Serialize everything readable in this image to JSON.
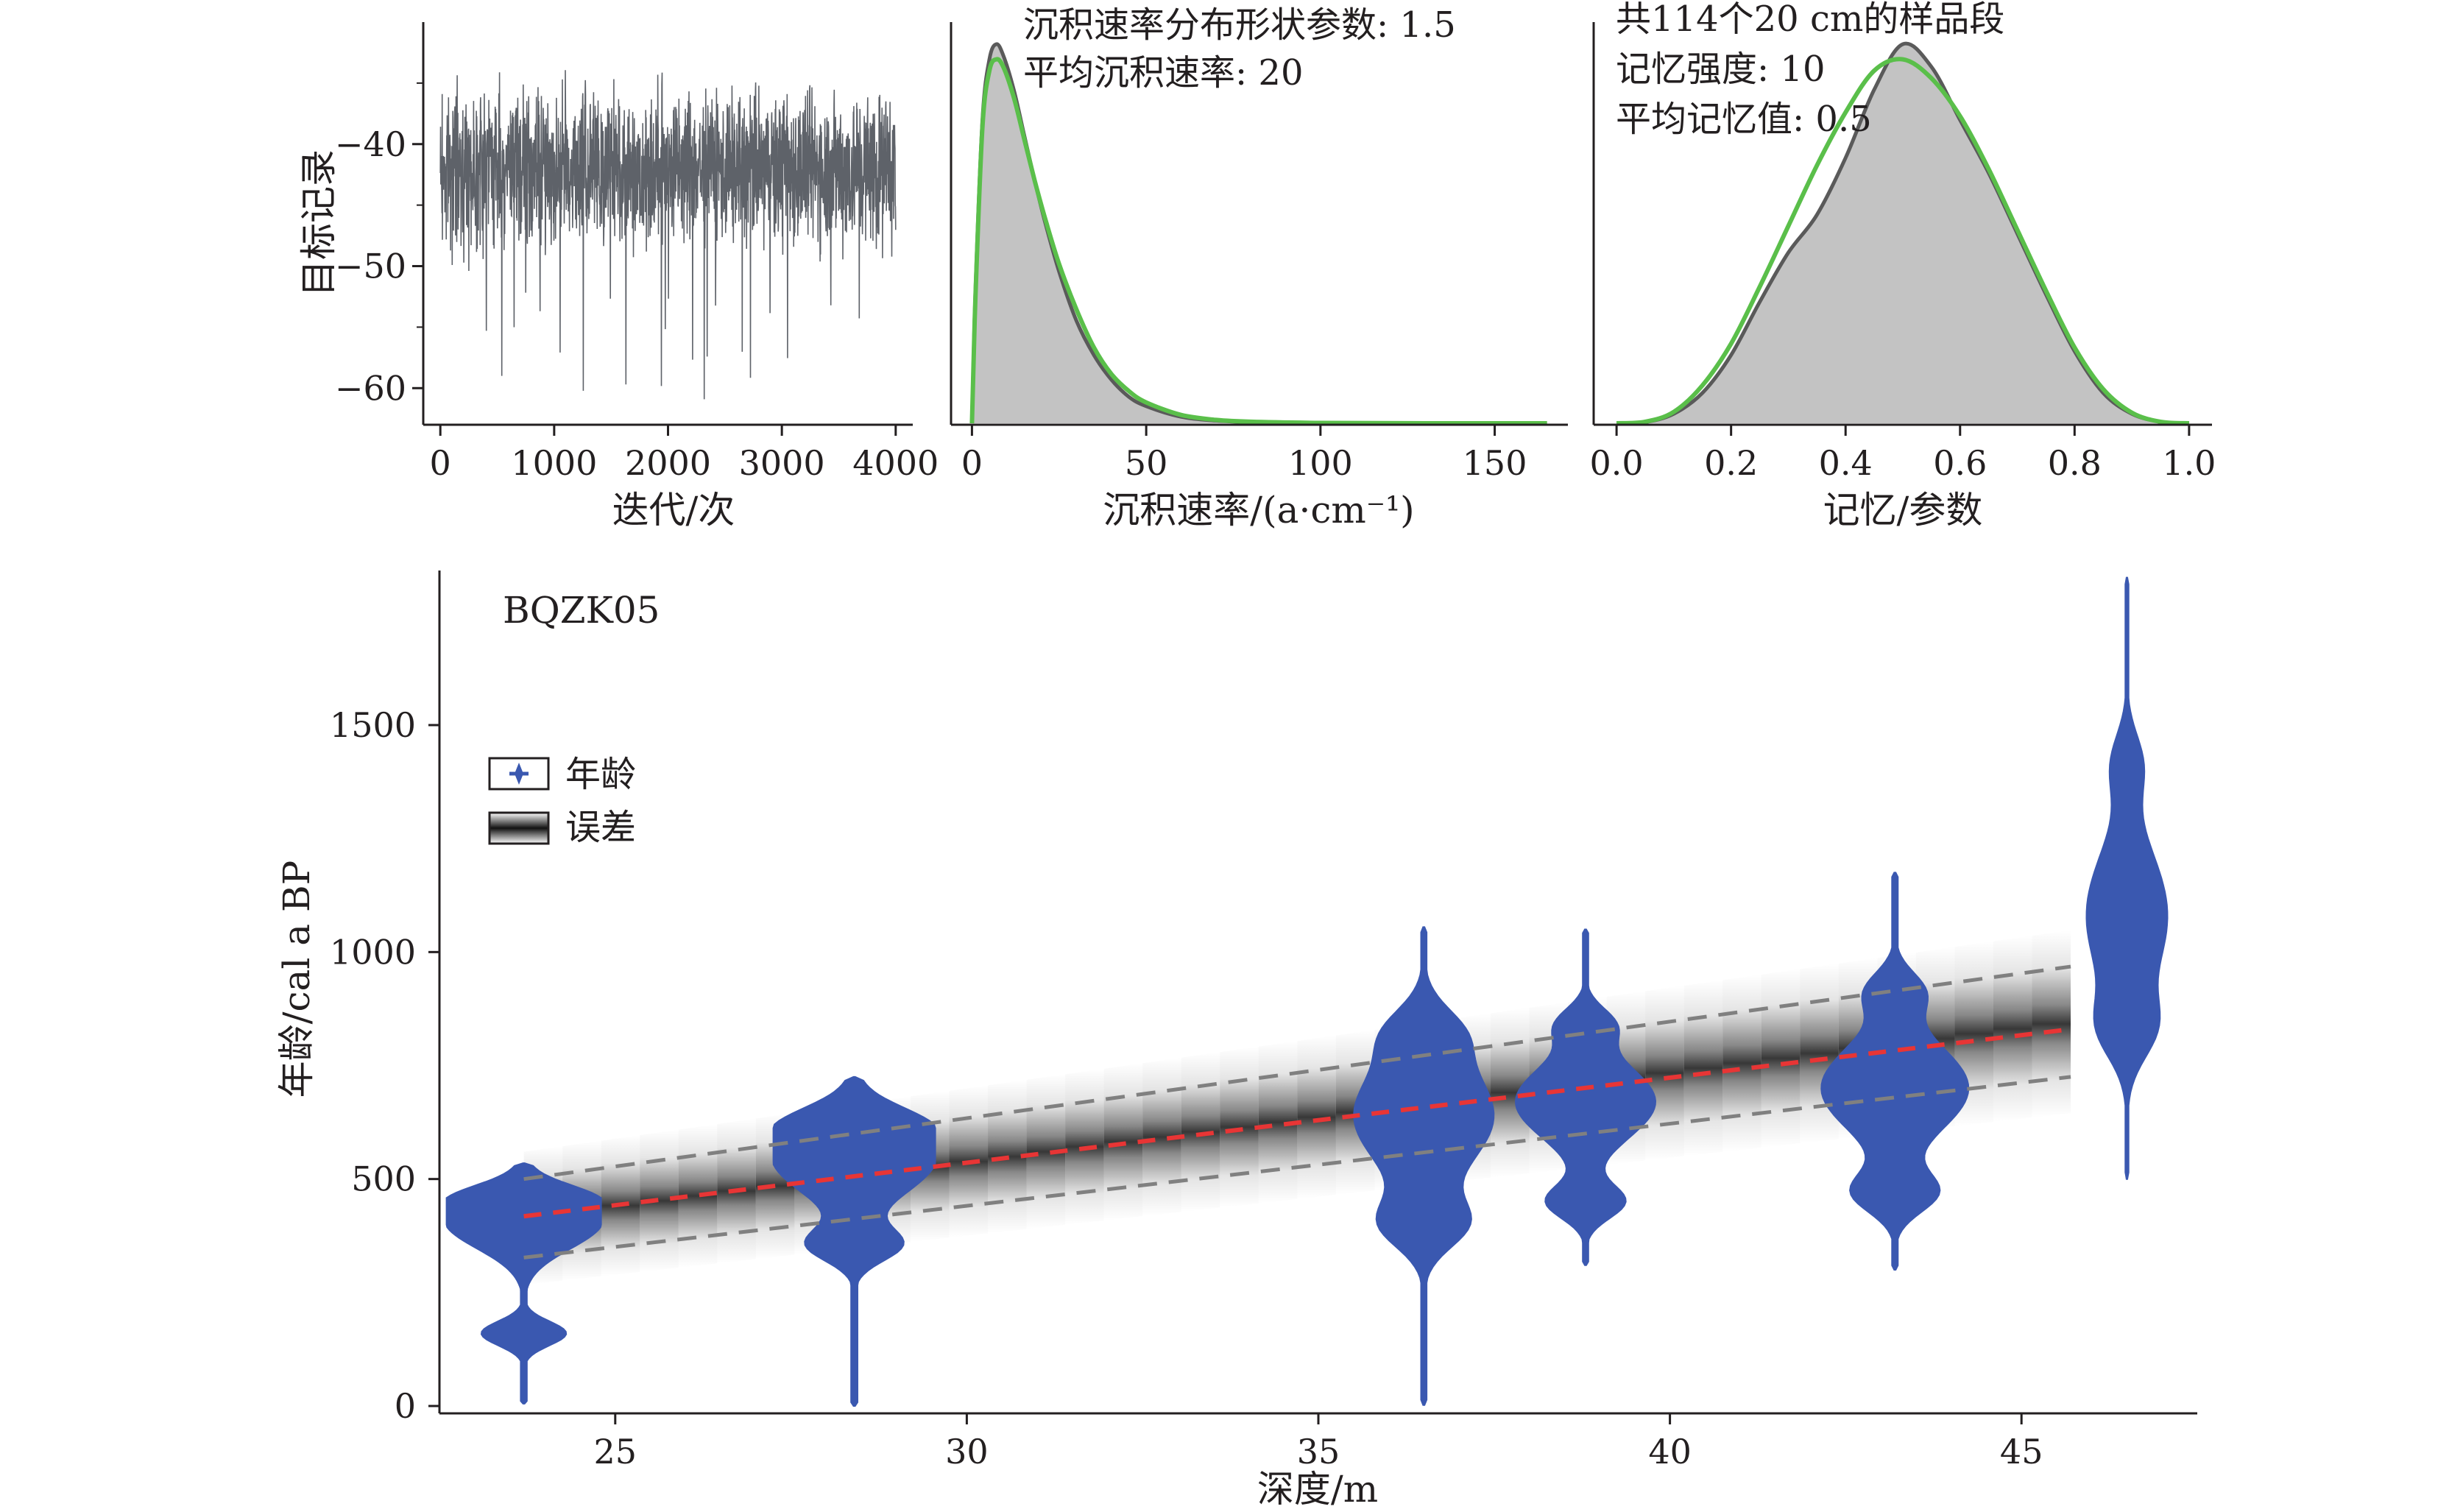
{
  "colors": {
    "trace": "#5e6269",
    "prior_fill": "#c3c3c3",
    "posterior_line": "#5a5a5a",
    "prior_line": "#5abf4a",
    "violin": "#3a58b0",
    "mean_line": "#e83535",
    "ci_line": "#808080",
    "axis": "#231f20"
  },
  "chart_data": [
    {
      "id": "iterations",
      "type": "line",
      "xlabel": "迭代/次",
      "ylabel": "目标记录",
      "xticks": [
        "0",
        "1000",
        "2000",
        "3000",
        "4000"
      ],
      "yticks": [
        "−40",
        "−50",
        "−60"
      ],
      "xlim": [
        -150,
        4150
      ],
      "ylim": [
        -63,
        -30
      ],
      "n_iter": 4000,
      "y_center": -42,
      "y_band": [
        -34,
        -51
      ],
      "y_extremes": [
        -61,
        -32
      ]
    },
    {
      "id": "accumulation-rate",
      "type": "area",
      "xlabel": "沉积速率/(a·cm⁻¹)",
      "xticks": [
        "0",
        "50",
        "100",
        "150"
      ],
      "xlim": [
        -6,
        171
      ],
      "annotations": [
        "沉积速率分布形状参数: 1.5",
        "平均沉积速率: 20"
      ],
      "series": [
        {
          "name": "",
          "x": [
            0,
            1,
            3,
            5,
            7,
            9,
            12,
            15,
            18,
            21,
            25,
            30,
            35,
            40,
            45,
            50,
            60,
            70,
            80,
            100,
            130,
            165
          ],
          "values": [
            0,
            0.35,
            0.8,
            0.96,
            1.0,
            0.97,
            0.88,
            0.76,
            0.64,
            0.53,
            0.4,
            0.27,
            0.18,
            0.115,
            0.07,
            0.045,
            0.017,
            0.007,
            0.003,
            0.0005,
            0,
            0
          ]
        },
        {
          "name": "",
          "x": [
            0,
            1,
            3,
            5,
            7,
            9,
            12,
            15,
            18,
            21,
            25,
            30,
            35,
            40,
            45,
            50,
            60,
            70,
            80,
            100,
            130,
            165
          ],
          "values": [
            0,
            0.33,
            0.78,
            0.93,
            0.96,
            0.94,
            0.86,
            0.75,
            0.64,
            0.54,
            0.42,
            0.3,
            0.2,
            0.13,
            0.085,
            0.055,
            0.022,
            0.009,
            0.004,
            0.001,
            0,
            0
          ]
        }
      ]
    },
    {
      "id": "memory",
      "type": "area",
      "xlabel": "记忆/参数",
      "xticks": [
        "0.0",
        "0.2",
        "0.4",
        "0.6",
        "0.8",
        "1.0"
      ],
      "xlim": [
        -0.04,
        1.04
      ],
      "annotations": [
        "共114个20 cm的样品段",
        "记忆强度: 10",
        "平均记忆值: 0.5"
      ],
      "series": [
        {
          "name": "",
          "x": [
            0,
            0.05,
            0.1,
            0.15,
            0.2,
            0.25,
            0.3,
            0.35,
            0.4,
            0.45,
            0.5,
            0.55,
            0.6,
            0.65,
            0.7,
            0.75,
            0.8,
            0.85,
            0.9,
            0.95,
            1.0
          ],
          "values": [
            0,
            0.003,
            0.025,
            0.08,
            0.18,
            0.32,
            0.45,
            0.55,
            0.7,
            0.88,
            1.0,
            0.94,
            0.8,
            0.66,
            0.5,
            0.34,
            0.19,
            0.08,
            0.025,
            0.004,
            0
          ]
        },
        {
          "name": "",
          "x": [
            0,
            0.05,
            0.1,
            0.15,
            0.2,
            0.25,
            0.3,
            0.35,
            0.4,
            0.45,
            0.5,
            0.55,
            0.6,
            0.65,
            0.7,
            0.75,
            0.8,
            0.85,
            0.9,
            0.95,
            1.0
          ],
          "values": [
            0,
            0.004,
            0.03,
            0.1,
            0.21,
            0.36,
            0.52,
            0.68,
            0.82,
            0.93,
            0.96,
            0.91,
            0.81,
            0.67,
            0.51,
            0.35,
            0.2,
            0.09,
            0.028,
            0.004,
            0
          ]
        }
      ]
    },
    {
      "id": "age-depth",
      "type": "area",
      "label": "BQZK05",
      "xlabel": "深度/m",
      "ylabel": "年龄/cal a BP",
      "xticks": [
        "25",
        "30",
        "35",
        "40",
        "45"
      ],
      "yticks": [
        "0",
        "500",
        "1000",
        "1500"
      ],
      "xlim": [
        22.5,
        47.5
      ],
      "ylim": [
        -10,
        1840
      ],
      "legend": {
        "position": "top-left",
        "items": [
          "年龄",
          "误差"
        ]
      },
      "model": {
        "x": [
          23.7,
          45.7
        ],
        "mean": [
          418,
          830
        ],
        "lower": [
          327,
          725
        ],
        "upper": [
          500,
          968
        ]
      },
      "dates": [
        {
          "depth": 23.7,
          "min": 5,
          "max": 535,
          "mode": 405,
          "tail_low": 160
        },
        {
          "depth": 28.4,
          "min": 0,
          "max": 725,
          "mode": 545,
          "tail_low": 355
        },
        {
          "depth": 36.5,
          "min": 2,
          "max": 1055,
          "mode": 640,
          "tail_low": 400
        },
        {
          "depth": 38.8,
          "min": 310,
          "max": 1050,
          "mode": 670,
          "tail_low": 450
        },
        {
          "depth": 43.2,
          "min": 300,
          "max": 1175,
          "mode": 700,
          "tail_low": 470
        },
        {
          "depth": 46.5,
          "min": 500,
          "max": 1825,
          "mode": 1080,
          "tail_low": 830
        }
      ]
    }
  ]
}
